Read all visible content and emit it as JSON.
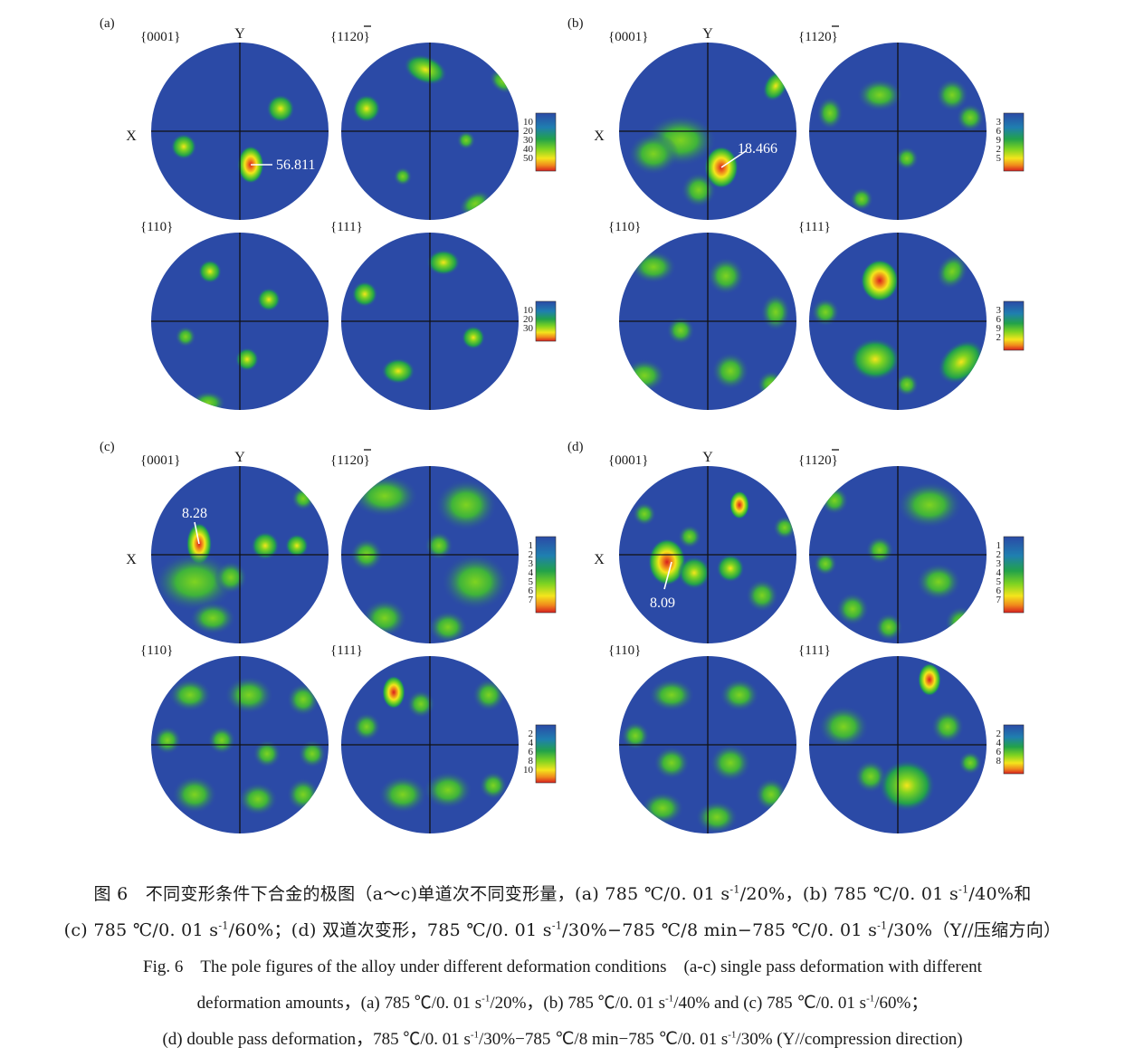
{
  "colors": {
    "low": "#2b4aa6",
    "mid1": "#22a24a",
    "mid2": "#7ed321",
    "high1": "#f4e51c",
    "high2": "#f08a1c",
    "peak": "#d81e1e",
    "axis": "#111111"
  },
  "panels": [
    {
      "label": "(a)",
      "axis_x": "X",
      "axis_y": "Y",
      "figures": [
        {
          "label": "{0001}",
          "annotation": "56.811"
        },
        {
          "label": "{1120}",
          "overbar_label": true
        },
        {
          "label": "{110}"
        },
        {
          "label": "{111}"
        }
      ],
      "scale_top": [
        "10",
        "20",
        "30",
        "40",
        "50"
      ],
      "scale_bottom": [
        "10",
        "20",
        "30"
      ]
    },
    {
      "label": "(b)",
      "axis_x": "X",
      "axis_y": "Y",
      "figures": [
        {
          "label": "{0001}",
          "annotation": "18.466"
        },
        {
          "label": "{1120}",
          "overbar_label": true
        },
        {
          "label": "{110}"
        },
        {
          "label": "{111}"
        }
      ],
      "scale_top": [
        "3",
        "6",
        "9",
        "2",
        "5"
      ],
      "scale_bottom": [
        "3",
        "6",
        "9",
        "2"
      ]
    },
    {
      "label": "(c)",
      "axis_x": "X",
      "axis_y": "Y",
      "figures": [
        {
          "label": "{0001}",
          "annotation": "8.28"
        },
        {
          "label": "{1120}",
          "overbar_label": true
        },
        {
          "label": "{110}"
        },
        {
          "label": "{111}"
        }
      ],
      "scale_top": [
        "1",
        "2",
        "3",
        "4",
        "5",
        "6",
        "7"
      ],
      "scale_bottom": [
        "2",
        "4",
        "6",
        "8",
        "10"
      ]
    },
    {
      "label": "(d)",
      "axis_x": "X",
      "axis_y": "Y",
      "figures": [
        {
          "label": "{0001}",
          "annotation": "8.09"
        },
        {
          "label": "{1120}",
          "overbar_label": true
        },
        {
          "label": "{110}"
        },
        {
          "label": "{111}"
        }
      ],
      "scale_top": [
        "1",
        "2",
        "3",
        "4",
        "5",
        "6",
        "7"
      ],
      "scale_bottom": [
        "2",
        "4",
        "6",
        "8"
      ]
    }
  ],
  "caption": {
    "cn_line1_a": "图 6　不同变形条件下合金的极图（a～c)单道次不同变形量，(a) 785 ℃/0. 01 s",
    "cn_line1_b": "/20%，(b) 785 ℃/0. 01 s",
    "cn_line1_c": "/40%和",
    "cn_line2_a": "(c) 785 ℃/0. 01 s",
    "cn_line2_b": "/60%；(d) 双道次变形，785 ℃/0. 01 s",
    "cn_line2_c": "/30%−785 ℃/8 min−785 ℃/0. 01 s",
    "cn_line2_d": "/30%（Y//压缩方向）",
    "en_line1": "Fig. 6　The pole figures of the alloy under different deformation conditions　(a-c) single pass deformation with different",
    "en_line2_a": "deformation amounts，(a) 785 ℃/0. 01 s",
    "en_line2_b": "/20%，(b) 785 ℃/0. 01 s",
    "en_line2_c": "/40% and (c) 785 ℃/0. 01 s",
    "en_line2_d": "/60%；",
    "en_line3_a": "(d) double pass deformation，785 ℃/0. 01 s",
    "en_line3_b": "/30%−785 ℃/8 min−785 ℃/0. 01 s",
    "en_line3_c": "/30% (Y//compression direction)",
    "exponent": "-1"
  }
}
